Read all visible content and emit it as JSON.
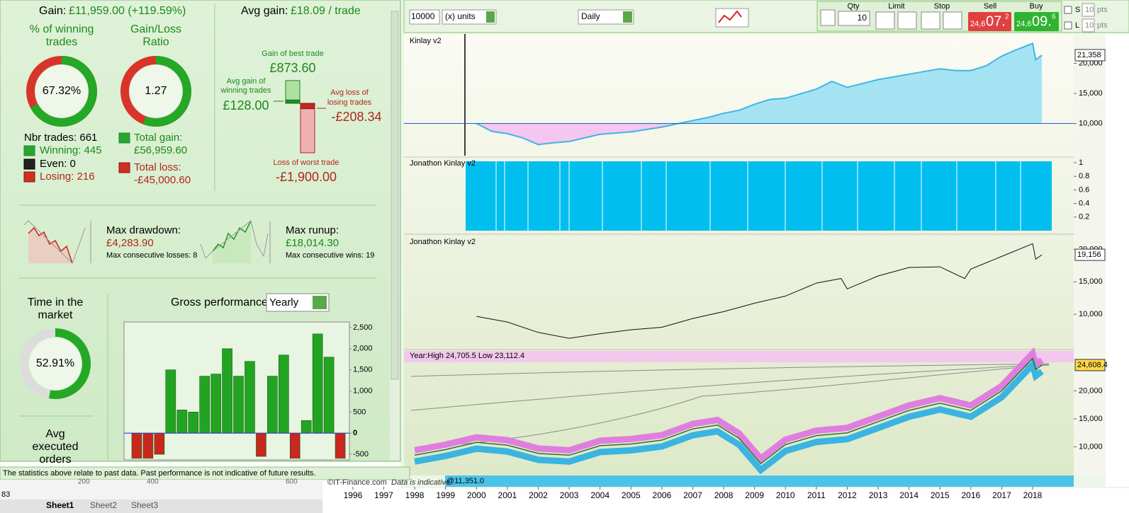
{
  "stats": {
    "gain_label": "Gain:",
    "gain_value": "£11,959.00 (+119.59%)",
    "avg_gain_label": "Avg gain:",
    "avg_gain_value": "£18.09 / trade",
    "win_rate": {
      "title": [
        "% of winning",
        "trades"
      ],
      "value": 67.32,
      "label": "67.32%"
    },
    "gain_loss_ratio": {
      "title": [
        "Gain/Loss",
        "Ratio"
      ],
      "value": 1.27
    },
    "trades": {
      "nbr": "Nbr trades: 661",
      "winning": "Winning: 445",
      "even": "Even: 0",
      "losing": "Losing: 216"
    },
    "total_gain": {
      "label": "Total gain:",
      "value": "£56,959.60"
    },
    "total_loss": {
      "label": "Total loss:",
      "value": "-£45,000.60"
    },
    "best_trade": {
      "title": "Gain of best trade",
      "value": 873.6,
      "label": "£873.60"
    },
    "avg_win": {
      "title": [
        "Avg gain of",
        "winning trades"
      ],
      "value": 128,
      "label": "£128.00"
    },
    "avg_loss": {
      "title": [
        "Avg loss of",
        "losing trades"
      ],
      "value": -208.34,
      "label": "-£208.34"
    },
    "worst_trade": {
      "title": "Loss of worst trade",
      "value": -1900,
      "label": "-£1,900.00"
    },
    "drawdown": {
      "title": "Max drawdown:",
      "value": "£4,283.90",
      "note": "Max consecutive losses: 8"
    },
    "runup": {
      "title": "Max runup:",
      "value": "£18,014.30",
      "note": "Max consecutive wins: 19"
    },
    "time_in_market": {
      "title": [
        "Time in the",
        "market"
      ],
      "value": 52.91,
      "label": "52.91%"
    },
    "avg_orders": {
      "title": [
        "Avg",
        "executed",
        "orders"
      ]
    },
    "footer": "The statistics above relate to past data. Past performance is not indicative of future results."
  },
  "gross_performance": {
    "type": "bar",
    "title": "Gross performance",
    "period": "Yearly",
    "values": [
      -600,
      -600,
      -500,
      1500,
      550,
      500,
      1350,
      1400,
      2000,
      1350,
      1700,
      -550,
      1350,
      1850,
      -600,
      300,
      2350,
      1800,
      -600
    ],
    "ylim": [
      -600,
      2600
    ],
    "yticks": [
      {
        "value": 2500,
        "label": "2,500"
      },
      {
        "value": 2000,
        "label": "2,000"
      },
      {
        "value": 1500,
        "label": "1,500"
      },
      {
        "value": 1000,
        "label": "1,000"
      },
      500,
      0,
      -500
    ],
    "color": "#22a422",
    "negative_color": "#c8281e"
  },
  "toolbar": {
    "amount": "10000",
    "units": "(x) units",
    "period": "Daily",
    "qty_label": "Qty",
    "qty": "10",
    "limit": "Limit",
    "stop": "Stop",
    "sell_label": "Sell",
    "sell_price": [
      "24,6",
      "07.",
      "2"
    ],
    "buy_label": "Buy",
    "buy_price": [
      "24,6",
      "09.",
      "6"
    ],
    "s_label": "S",
    "s_pts": "10",
    "l_label": "L",
    "l_pts": "10",
    "pts": "pts"
  },
  "x_axis": {
    "xlim": [
      1995.13,
      2019.33
    ],
    "xticks": [
      1996,
      1997,
      1998,
      1999,
      2000,
      2001,
      2002,
      2003,
      2004,
      2005,
      2006,
      2007,
      2008,
      2009,
      2010,
      2011,
      2012,
      2013,
      2014,
      2015,
      2016,
      2017,
      2018
    ]
  },
  "panels": [
    {
      "type": "area",
      "title": "Kinlay v2",
      "x": [
        2000,
        2000.5,
        2001,
        2001.5,
        2002,
        2002.5,
        2003,
        2003.5,
        2004,
        2005,
        2006,
        2007,
        2007.5,
        2008,
        2008.5,
        2009,
        2009.5,
        2010,
        2011,
        2011.5,
        2012,
        2013,
        2014,
        2015,
        2015.5,
        2016,
        2016.5,
        2017,
        2017.5,
        2018,
        2018.1,
        2018.3
      ],
      "values": [
        10000,
        8700,
        8300,
        7600,
        6500,
        6800,
        7000,
        7600,
        8200,
        8600,
        9400,
        10500,
        11000,
        11700,
        12200,
        13200,
        14000,
        14200,
        15700,
        17000,
        16000,
        17300,
        18200,
        19100,
        18800,
        18800,
        19600,
        21200,
        22300,
        23300,
        20600,
        21358
      ],
      "value_labels": {
        "31": "21,358"
      },
      "baseline": 10000,
      "ylim": [
        5000,
        25000
      ],
      "yticks": [
        {
          "value": 10000,
          "label": "10,000"
        },
        {
          "value": 15000,
          "label": "15,000"
        },
        {
          "value": 20000,
          "label": "20,000"
        }
      ]
    },
    {
      "type": "exposure",
      "title": "Jonathon Kinlay v2",
      "ylim": [
        0,
        1
      ],
      "yticks": [
        0.2,
        0.4,
        0.6,
        0.8,
        1
      ]
    },
    {
      "type": "line",
      "title": "Jonathon Kinlay v2",
      "x": [
        2000,
        2001,
        2002,
        2003,
        2004,
        2005,
        2006,
        2007,
        2008,
        2009,
        2010,
        2011,
        2011.8,
        2012,
        2013,
        2014,
        2015,
        2015.8,
        2016,
        2017,
        2018,
        2018.1,
        2018.3
      ],
      "values": [
        9670,
        8800,
        7200,
        6300,
        7000,
        7600,
        8000,
        9350,
        10400,
        11700,
        12800,
        14800,
        15500,
        13900,
        15900,
        17200,
        17300,
        15500,
        16950,
        18900,
        20870,
        18480,
        19156
      ],
      "value_labels": {
        "22": "19,156"
      },
      "ylim": [
        5000,
        22000
      ],
      "yticks": [
        {
          "value": 10000,
          "label": "10,000"
        },
        {
          "value": 15000,
          "label": "15,000"
        },
        {
          "value": 20000,
          "label": "20,000"
        }
      ]
    },
    {
      "type": "price",
      "title": "Year:High 24,705.5 Low 23,112.4",
      "x": [
        1998,
        1999,
        2000,
        2001,
        2002,
        2003,
        2004,
        2005,
        2006,
        2007,
        2007.8,
        2008.5,
        2009.2,
        2010,
        2011,
        2012,
        2013,
        2014,
        2015,
        2016,
        2017,
        2018,
        2018.1,
        2018.3
      ],
      "values": [
        8500,
        9500,
        10800,
        10300,
        8800,
        8500,
        10200,
        10500,
        11200,
        13200,
        13900,
        11500,
        7000,
        10400,
        12000,
        12500,
        14500,
        16500,
        17800,
        16500,
        20000,
        25800,
        23800,
        24608.4
      ],
      "value_labels": {
        "23": "24,608.4"
      },
      "ylim": [
        5000,
        27000
      ],
      "yticks": [
        {
          "value": 10000,
          "label": "10,000"
        },
        {
          "value": 15000,
          "label": "15,000"
        },
        {
          "value": 20000,
          "label": "20,000"
        }
      ],
      "low_label": "@11,351.0"
    }
  ],
  "bottom": {
    "copyright": "©IT-Finance.com",
    "data_note": "Data is indicative",
    "sheet_columns": [
      "200",
      "400",
      "600"
    ],
    "row": "83",
    "sheets": [
      "Sheet1",
      "Sheet2",
      "Sheet3"
    ]
  }
}
